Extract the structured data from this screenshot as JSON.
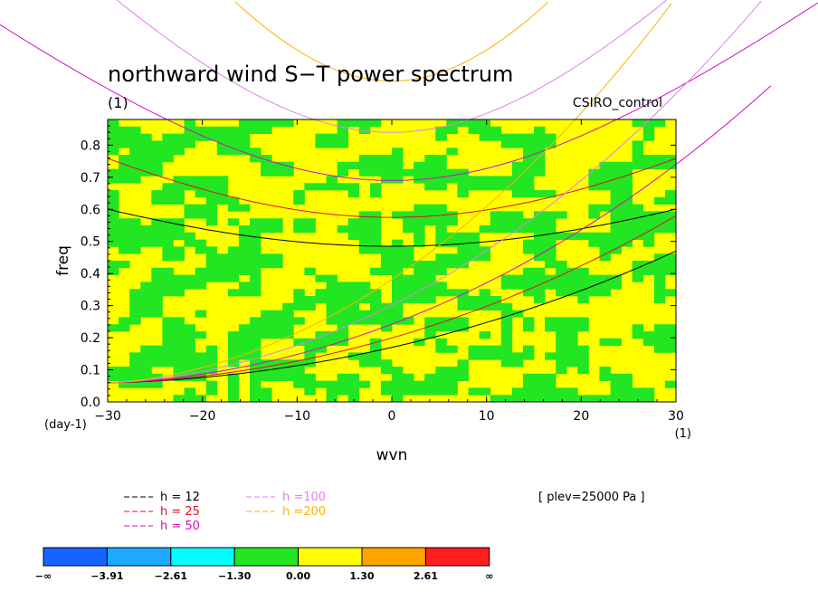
{
  "chart_data": {
    "type": "heatmap",
    "title": "northward wind S−T power spectrum",
    "subtitle": "(1)",
    "experiment": "CSIRO_control",
    "xlabel": "wvn",
    "ylabel": "freq",
    "x_unit": "(1)",
    "y_unit": "(day-1)",
    "xlim": [
      -30,
      30
    ],
    "ylim": [
      0,
      0.88
    ],
    "x_ticks": [
      "−30",
      "−20",
      "−10",
      "0",
      "10",
      "20",
      "30"
    ],
    "y_ticks": [
      "0.0",
      "0.1",
      "0.2",
      "0.3",
      "0.4",
      "0.5",
      "0.6",
      "0.7",
      "0.8"
    ],
    "level_note": "[ plev=25000 Pa ]",
    "colorbar": {
      "labels": [
        "−∞",
        "−3.91",
        "−2.61",
        "−1.30",
        "0.00",
        "1.30",
        "2.61",
        "∞"
      ],
      "colors": [
        "#1464ff",
        "#1fa8ff",
        "#00ffff",
        "#22e622",
        "#ffff00",
        "#ffa500",
        "#ff1e1e"
      ]
    },
    "field_note": "field alternates mostly between the 0.00 to 1.30 class (yellow) and the −1.30 to 0.00 class (green)",
    "dispersion_curves": [
      {
        "name": "h = 12",
        "color": "#000000",
        "equivalent_depth": 12
      },
      {
        "name": "h = 25",
        "color": "#e0102a",
        "equivalent_depth": 25
      },
      {
        "name": "h = 50",
        "color": "#d010c0",
        "equivalent_depth": 50
      },
      {
        "name": "h =100",
        "color": "#e080e8",
        "equivalent_depth": 100
      },
      {
        "name": "h =200",
        "color": "#ffb000",
        "equivalent_depth": 200
      }
    ]
  }
}
